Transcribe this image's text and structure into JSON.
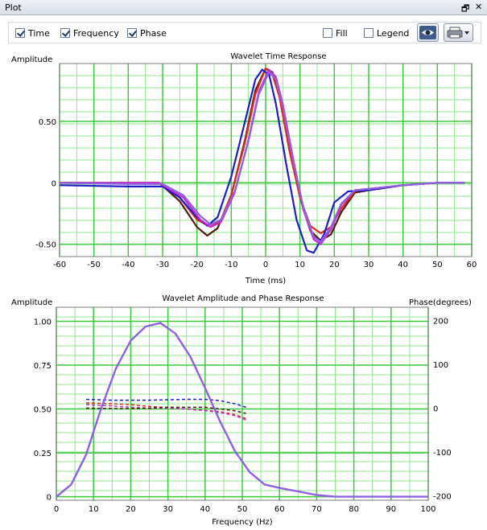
{
  "window": {
    "title": "Plot",
    "restore_glyph": "🗗",
    "close_glyph": "✕"
  },
  "toolbar": {
    "checkboxes": [
      {
        "label": "Time",
        "checked": true
      },
      {
        "label": "Frequency",
        "checked": true
      },
      {
        "label": "Phase",
        "checked": true
      },
      {
        "label": "Fill",
        "checked": false
      },
      {
        "label": "Legend",
        "checked": false
      }
    ],
    "view_icon": "eye-icon",
    "print_icon": "printer-icon"
  },
  "chart_data": [
    {
      "type": "line",
      "title": "Wavelet Time Response",
      "xlabel": "Time (ms)",
      "ylabel": "Amplitude",
      "xlim": [
        -60,
        60
      ],
      "ylim": [
        -0.6,
        0.97
      ],
      "xticks": [
        -60,
        -50,
        -40,
        -30,
        -20,
        -10,
        0,
        10,
        20,
        30,
        40,
        50,
        60
      ],
      "yticks": [
        {
          "v": 0.5,
          "label": "0.50"
        },
        {
          "v": 0,
          "label": "0"
        },
        {
          "v": -0.5,
          "label": "-0.50"
        }
      ],
      "grid": true,
      "series": [
        {
          "color": "#501a0e",
          "x": [
            -60,
            -40,
            -31,
            -25,
            -20,
            -17,
            -14,
            -10,
            -6,
            -3,
            0,
            2,
            4,
            7,
            10,
            13,
            16,
            19,
            22,
            26,
            30,
            40,
            50,
            58
          ],
          "y": [
            0,
            0,
            0,
            -0.15,
            -0.36,
            -0.43,
            -0.37,
            -0.1,
            0.35,
            0.75,
            0.93,
            0.9,
            0.72,
            0.28,
            -0.12,
            -0.39,
            -0.47,
            -0.42,
            -0.24,
            -0.08,
            -0.06,
            -0.02,
            0,
            0
          ]
        },
        {
          "color": "#e0281e",
          "x": [
            -60,
            -40,
            -31,
            -25,
            -20,
            -16,
            -13,
            -10,
            -6,
            -3,
            0,
            2,
            4,
            7,
            10,
            13,
            16,
            19,
            22,
            26,
            30,
            40,
            50,
            58
          ],
          "y": [
            0,
            0,
            0,
            -0.12,
            -0.3,
            -0.36,
            -0.3,
            -0.1,
            0.33,
            0.72,
            0.93,
            0.88,
            0.7,
            0.25,
            -0.12,
            -0.35,
            -0.41,
            -0.36,
            -0.21,
            -0.07,
            -0.05,
            -0.02,
            0,
            0
          ]
        },
        {
          "color": "#1e1ec8",
          "x": [
            -60,
            -40,
            -30,
            -25,
            -20,
            -17,
            -14,
            -10,
            -6,
            -3,
            -1,
            1,
            3,
            6,
            9,
            12,
            14,
            17,
            20,
            24,
            30,
            40,
            50,
            58
          ],
          "y": [
            -0.02,
            -0.03,
            -0.03,
            -0.12,
            -0.28,
            -0.35,
            -0.28,
            0.05,
            0.5,
            0.84,
            0.92,
            0.88,
            0.64,
            0.15,
            -0.3,
            -0.55,
            -0.57,
            -0.42,
            -0.16,
            -0.07,
            -0.06,
            -0.02,
            0,
            0
          ]
        },
        {
          "color": "#c030d0",
          "x": [
            -60,
            -40,
            -31,
            -24,
            -19,
            -16,
            -13,
            -9,
            -5,
            -2,
            1,
            3,
            5,
            8,
            11,
            14,
            16,
            19,
            22,
            26,
            30,
            40,
            50,
            58
          ],
          "y": [
            0,
            0,
            0,
            -0.12,
            -0.3,
            -0.36,
            -0.32,
            -0.08,
            0.35,
            0.74,
            0.92,
            0.86,
            0.64,
            0.2,
            -0.22,
            -0.46,
            -0.5,
            -0.38,
            -0.18,
            -0.06,
            -0.05,
            -0.02,
            0,
            0
          ]
        },
        {
          "color": "#9060e0",
          "x": [
            -60,
            -40,
            -30,
            -24,
            -19,
            -16,
            -13,
            -9,
            -5,
            -2,
            1,
            3,
            5,
            8,
            11,
            14,
            16,
            19,
            22,
            26,
            30,
            40,
            50,
            58
          ],
          "y": [
            0,
            -0.01,
            -0.01,
            -0.1,
            -0.27,
            -0.34,
            -0.3,
            -0.07,
            0.34,
            0.72,
            0.9,
            0.84,
            0.62,
            0.18,
            -0.2,
            -0.44,
            -0.48,
            -0.36,
            -0.17,
            -0.06,
            -0.05,
            -0.02,
            0,
            0
          ]
        }
      ]
    },
    {
      "type": "line",
      "title": "Wavelet Amplitude and Phase Response",
      "xlabel": "Frequency (Hz)",
      "ylabel": "Amplitude",
      "y2label": "Phase(degrees)",
      "xlim": [
        0,
        100
      ],
      "ylim": [
        -0.02,
        1.08
      ],
      "y2lim": [
        -210,
        230
      ],
      "xticks": [
        0,
        10,
        20,
        30,
        40,
        50,
        60,
        70,
        80,
        90,
        100
      ],
      "yticks": [
        {
          "v": 1,
          "label": "1.00"
        },
        {
          "v": 0.75,
          "label": "0.75"
        },
        {
          "v": 0.5,
          "label": "0.50"
        },
        {
          "v": 0.25,
          "label": "0.25"
        },
        {
          "v": 0,
          "label": "0"
        }
      ],
      "y2ticks": [
        200,
        100,
        0,
        -100,
        -200
      ],
      "grid": true,
      "amplitude_series": [
        {
          "color": "#9060e0",
          "x": [
            0,
            4,
            8,
            12,
            16,
            20,
            24,
            28,
            32,
            36,
            40,
            44,
            48,
            52,
            56,
            60,
            65,
            70,
            75,
            80,
            90,
            100
          ],
          "y": [
            0,
            0.07,
            0.24,
            0.5,
            0.73,
            0.89,
            0.97,
            0.99,
            0.93,
            0.8,
            0.62,
            0.43,
            0.26,
            0.14,
            0.07,
            0.05,
            0.03,
            0.01,
            0,
            0,
            0,
            0
          ]
        }
      ],
      "phase_series": [
        {
          "color": "#1e1ec8",
          "dashed": true,
          "x": [
            8,
            15,
            20,
            25,
            30,
            35,
            40,
            44,
            48,
            51
          ],
          "y": [
            20,
            18,
            18,
            18,
            19,
            20,
            20,
            17,
            10,
            2
          ]
        },
        {
          "color": "#e0281e",
          "dashed": true,
          "x": [
            8,
            15,
            20,
            25,
            30,
            35,
            40,
            44,
            48,
            51
          ],
          "y": [
            12,
            10,
            8,
            4,
            1,
            -2,
            -5,
            -8,
            -15,
            -24
          ]
        },
        {
          "color": "#c030d0",
          "dashed": true,
          "x": [
            8,
            15,
            20,
            25,
            30,
            35,
            40,
            44,
            48,
            51
          ],
          "y": [
            8,
            5,
            2,
            0,
            0,
            -2,
            -6,
            -10,
            -17,
            -27
          ]
        },
        {
          "color": "#501a0e",
          "dashed": true,
          "x": [
            8,
            15,
            20,
            25,
            30,
            35,
            40,
            44,
            48,
            51
          ],
          "y": [
            0,
            -1,
            -1,
            0,
            2,
            2,
            2,
            -2,
            -6,
            -12
          ]
        }
      ]
    }
  ]
}
